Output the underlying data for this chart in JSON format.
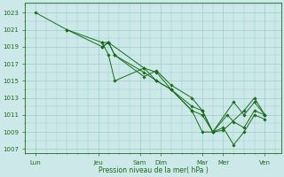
{
  "xlabel": "Pression niveau de la mer( hPa )",
  "bg_color": "#cce8e8",
  "grid_color": "#99cccc",
  "line_color": "#1a6b1a",
  "yticks": [
    1007,
    1009,
    1011,
    1013,
    1015,
    1017,
    1019,
    1021,
    1023
  ],
  "ylim": [
    1006.5,
    1024.0
  ],
  "xlim": [
    -0.3,
    13.0
  ],
  "xtick_positions": [
    0,
    1.5,
    3,
    6,
    9,
    12,
    18
  ],
  "xtick_labels": [
    "Lun",
    "Jeu",
    "Sam",
    "Dim",
    "Mar",
    "Mer",
    "Ven"
  ],
  "series": [
    {
      "x": [
        0,
        1.0,
        2.5,
        3.0,
        5.5,
        6.5,
        8.0,
        10.0,
        11.0,
        12.5,
        13.5,
        16.5,
        18.0,
        21.0
      ],
      "y": [
        1023,
        1021,
        1019.5,
        1019.5,
        1016.5,
        1016,
        1014,
        1011.5,
        1011,
        1009,
        1009.2,
        1011.5,
        1013,
        1011
      ]
    },
    {
      "x": [
        1.0,
        2.5,
        3.0,
        3.5,
        5.5,
        6.5,
        8.0,
        10.0,
        12.5,
        12.5,
        15.5,
        16.5,
        18.0,
        21.0
      ],
      "y": [
        1021,
        1019,
        1019.5,
        1018,
        1016,
        1015,
        1014,
        1011.5,
        1009,
        1009,
        1012.5,
        1011,
        1012.5,
        1011
      ]
    },
    {
      "x": [
        2.5,
        3.0,
        3.5,
        5.5,
        6.5,
        8.0,
        10.0,
        11.0,
        12.5,
        14.0,
        15.5,
        16.5,
        18.0,
        21.0
      ],
      "y": [
        1019,
        1019.5,
        1018,
        1015.5,
        1016.2,
        1014.5,
        1013,
        1011.5,
        1009,
        1011,
        1010.2,
        1009.5,
        1011.5,
        1011
      ]
    },
    {
      "x": [
        2.5,
        3.0,
        3.5,
        5.5,
        6.5,
        8.0,
        10.0,
        11.0,
        12.5,
        14.0,
        15.0,
        16.5,
        18.0,
        21.0
      ],
      "y": [
        1019.5,
        1018,
        1015,
        1016.5,
        1015,
        1014,
        1012,
        1011.5,
        1009,
        1009.5,
        1007.5,
        1009,
        1011,
        1010.5
      ]
    }
  ]
}
